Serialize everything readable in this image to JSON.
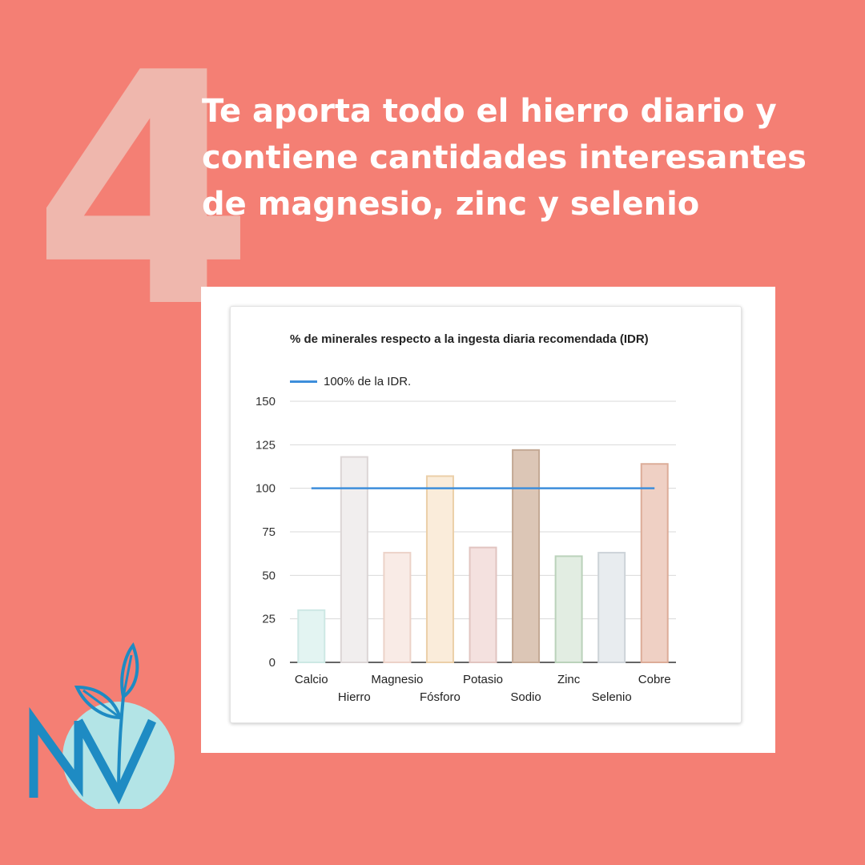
{
  "slide": {
    "number": "4",
    "headline": [
      "Te aporta todo el hierro diario y",
      "contiene cantidades interesantes",
      "de magnesio, zinc y selenio"
    ]
  },
  "colors": {
    "background": "#f47f74",
    "big_number": "#efb7ad",
    "reference_line": "#3d8edb",
    "logo_blue": "#1e8bc3",
    "logo_circle": "#b3e4e6"
  },
  "logo": {
    "icon": "sprout-nv-logo-icon"
  },
  "chart_data": {
    "type": "bar",
    "title": "% de minerales respecto a la ingesta diaria recomendada (IDR)",
    "xlabel": "",
    "ylabel": "",
    "categories": [
      "Calcio",
      "Hierro",
      "Magnesio",
      "Fósforo",
      "Potasio",
      "Sodio",
      "Zinc",
      "Selenio",
      "Cobre"
    ],
    "values": [
      30,
      118,
      63,
      107,
      66,
      122,
      61,
      63,
      114
    ],
    "bar_colors": [
      "#e3f4f2",
      "#f1eeee",
      "#f9ebe6",
      "#faecda",
      "#f4e1df",
      "#dcc6b6",
      "#e2ede2",
      "#e8ecef",
      "#efd0c4"
    ],
    "bar_borders": [
      "#cde8e4",
      "#dcd6d6",
      "#ecd2c8",
      "#ebcfa8",
      "#e1c4c0",
      "#c4a995",
      "#bad2ba",
      "#cdd3d8",
      "#dcac98"
    ],
    "ylim": [
      0,
      150
    ],
    "yticks": [
      0,
      25,
      50,
      75,
      100,
      125,
      150
    ],
    "reference_line": {
      "name": "100% de la IDR.",
      "value": 100
    },
    "grid": true,
    "legend_position": "top-left"
  }
}
